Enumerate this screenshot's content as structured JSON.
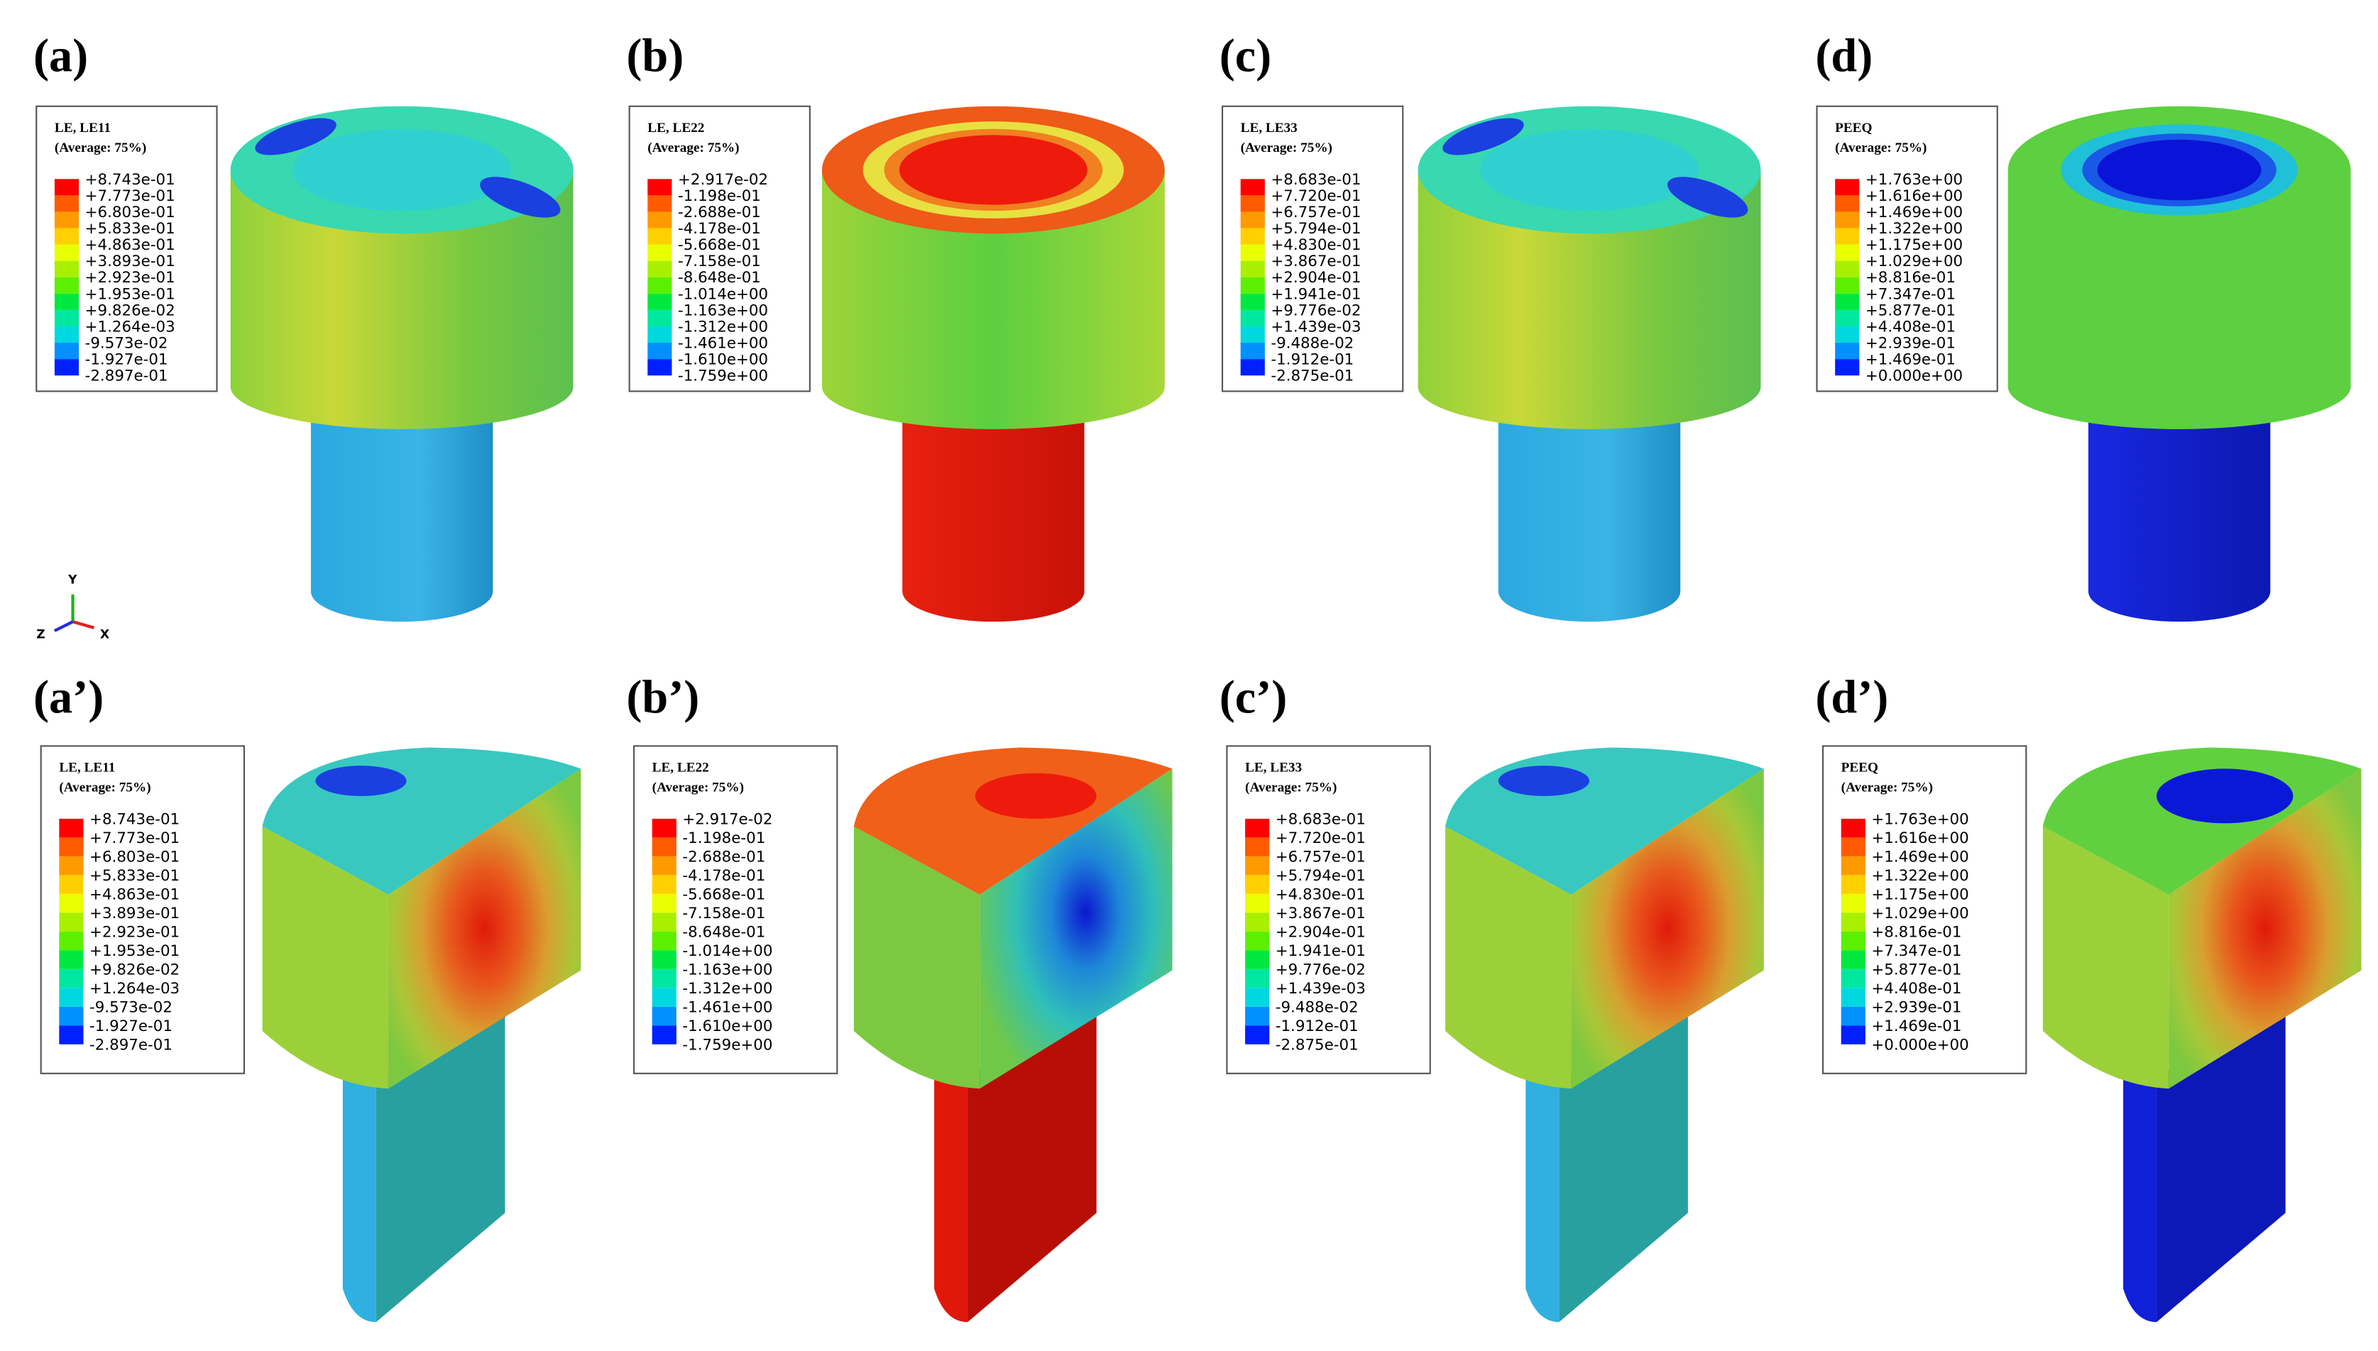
{
  "panels": [
    {
      "label": "(a)",
      "legend": {
        "title": "LE, LE11",
        "subtitle": "(Average: 75%)",
        "values": [
          "+8.743e-01",
          "+7.773e-01",
          "+6.803e-01",
          "+5.833e-01",
          "+4.863e-01",
          "+3.893e-01",
          "+2.923e-01",
          "+1.953e-01",
          "+9.826e-02",
          "+1.264e-03",
          "-9.573e-02",
          "-1.927e-01",
          "-2.897e-01"
        ]
      }
    },
    {
      "label": "(b)",
      "legend": {
        "title": "LE, LE22",
        "subtitle": "(Average: 75%)",
        "values": [
          "+2.917e-02",
          "-1.198e-01",
          "-2.688e-01",
          "-4.178e-01",
          "-5.668e-01",
          "-7.158e-01",
          "-8.648e-01",
          "-1.014e+00",
          "-1.163e+00",
          "-1.312e+00",
          "-1.461e+00",
          "-1.610e+00",
          "-1.759e+00"
        ]
      }
    },
    {
      "label": "(c)",
      "legend": {
        "title": "LE, LE33",
        "subtitle": "(Average: 75%)",
        "values": [
          "+8.683e-01",
          "+7.720e-01",
          "+6.757e-01",
          "+5.794e-01",
          "+4.830e-01",
          "+3.867e-01",
          "+2.904e-01",
          "+1.941e-01",
          "+9.776e-02",
          "+1.439e-03",
          "-9.488e-02",
          "-1.912e-01",
          "-2.875e-01"
        ]
      }
    },
    {
      "label": "(d)",
      "legend": {
        "title": "PEEQ",
        "subtitle": "(Average: 75%)",
        "values": [
          "+1.763e+00",
          "+1.616e+00",
          "+1.469e+00",
          "+1.322e+00",
          "+1.175e+00",
          "+1.029e+00",
          "+8.816e-01",
          "+7.347e-01",
          "+5.877e-01",
          "+4.408e-01",
          "+2.939e-01",
          "+1.469e-01",
          "+0.000e+00"
        ]
      }
    },
    {
      "label": "(a’)",
      "legend": {
        "title": "LE, LE11",
        "subtitle": "(Average: 75%)",
        "values": [
          "+8.743e-01",
          "+7.773e-01",
          "+6.803e-01",
          "+5.833e-01",
          "+4.863e-01",
          "+3.893e-01",
          "+2.923e-01",
          "+1.953e-01",
          "+9.826e-02",
          "+1.264e-03",
          "-9.573e-02",
          "-1.927e-01",
          "-2.897e-01"
        ]
      }
    },
    {
      "label": "(b’)",
      "legend": {
        "title": "LE, LE22",
        "subtitle": "(Average: 75%)",
        "values": [
          "+2.917e-02",
          "-1.198e-01",
          "-2.688e-01",
          "-4.178e-01",
          "-5.668e-01",
          "-7.158e-01",
          "-8.648e-01",
          "-1.014e+00",
          "-1.163e+00",
          "-1.312e+00",
          "-1.461e+00",
          "-1.610e+00",
          "-1.759e+00"
        ]
      }
    },
    {
      "label": "(c’)",
      "legend": {
        "title": "LE, LE33",
        "subtitle": "(Average: 75%)",
        "values": [
          "+8.683e-01",
          "+7.720e-01",
          "+6.757e-01",
          "+5.794e-01",
          "+4.830e-01",
          "+3.867e-01",
          "+2.904e-01",
          "+1.941e-01",
          "+9.776e-02",
          "+1.439e-03",
          "-9.488e-02",
          "-1.912e-01",
          "-2.875e-01"
        ]
      }
    },
    {
      "label": "(d’)",
      "legend": {
        "title": "PEEQ",
        "subtitle": "(Average: 75%)",
        "values": [
          "+1.763e+00",
          "+1.616e+00",
          "+1.469e+00",
          "+1.322e+00",
          "+1.175e+00",
          "+1.029e+00",
          "+8.816e-01",
          "+7.347e-01",
          "+5.877e-01",
          "+4.408e-01",
          "+2.939e-01",
          "+1.469e-01",
          "+0.000e+00"
        ]
      }
    }
  ],
  "triad": {
    "y": "Y",
    "z": "Z",
    "x": "X"
  }
}
